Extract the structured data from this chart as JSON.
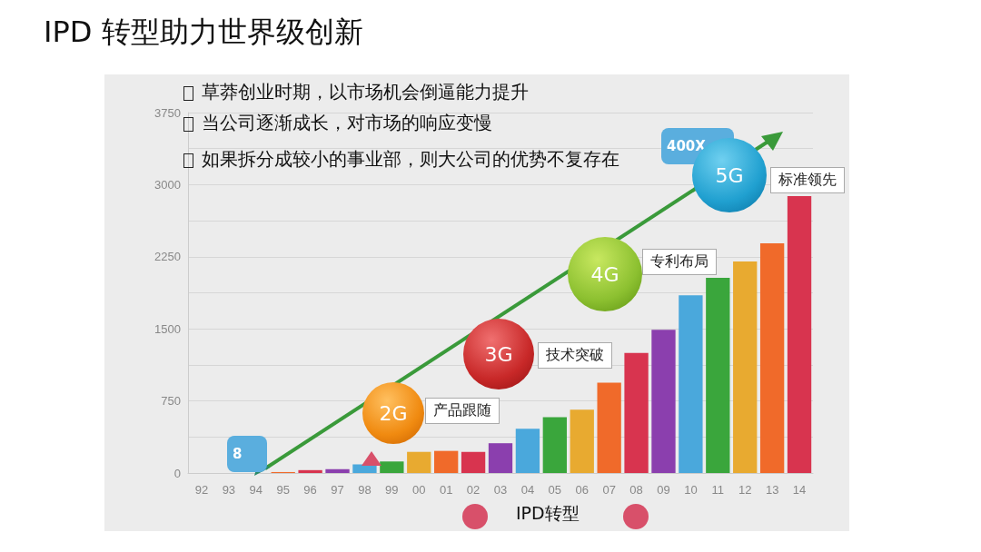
{
  "chart_data": {
    "type": "bar",
    "title": "IPD 转型助力世界级创新",
    "categories": [
      "92",
      "93",
      "94",
      "95",
      "96",
      "97",
      "98",
      "99",
      "00",
      "01",
      "02",
      "03",
      "04",
      "05",
      "06",
      "07",
      "08",
      "09",
      "10",
      "11",
      "12",
      "13",
      "14"
    ],
    "values": [
      null,
      null,
      null,
      10,
      30,
      40,
      90,
      120,
      220,
      230,
      220,
      310,
      460,
      580,
      660,
      940,
      1250,
      1490,
      1850,
      2030,
      2200,
      2390,
      2880
    ],
    "colors": [
      "#4aa8dc",
      "#3aa63c",
      "#e8aa30",
      "#f06a2a",
      "#d8344f",
      "#8b3fae",
      "#4aa8dc",
      "#3aa63c",
      "#e8aa30",
      "#f06a2a",
      "#d8344f",
      "#8b3fae",
      "#4aa8dc",
      "#3aa63c",
      "#e8aa30",
      "#f06a2a",
      "#d8344f",
      "#8b3fae",
      "#4aa8dc",
      "#3aa63c",
      "#e8aa30",
      "#f06a2a",
      "#d8344f"
    ],
    "ylim": [
      0,
      3750
    ],
    "yticks": [
      0,
      {
        "value": 375,
        "label": null
      },
      750,
      {
        "value": 1125,
        "label": null
      },
      1500,
      {
        "value": 1875,
        "label": null
      },
      2250,
      {
        "value": 2625,
        "label": null
      },
      3000,
      {
        "value": 3375,
        "label": null
      },
      3750
    ],
    "grid": "y",
    "annotations": [
      "草莽创业时期，以市场机会倒逼能力提升",
      "当公司逐渐成长，对市场的响应变慢",
      "如果拆分成较小的事业部，则大公司的优势不复存在",
      "8",
      "400X",
      "2G",
      "产品跟随",
      "3G",
      "技术突破",
      "4G",
      "专利布局",
      "5G",
      "标准领先",
      "IPD转型"
    ]
  }
}
